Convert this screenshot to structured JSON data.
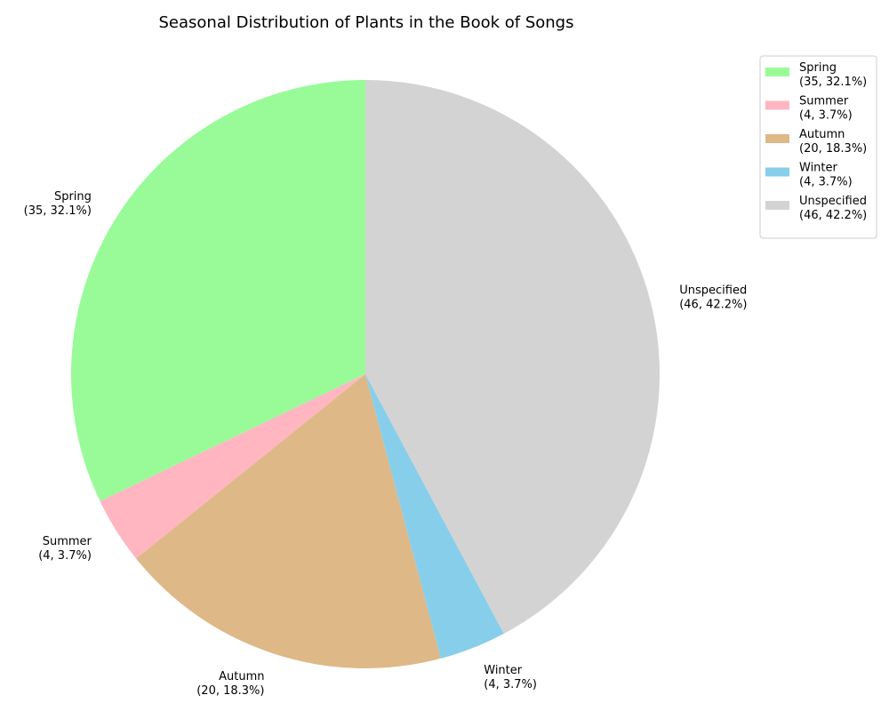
{
  "chart_data": {
    "type": "pie",
    "title": "Seasonal Distribution of Plants in the Book of Songs",
    "start_angle_deg": 90,
    "direction": "counterclockwise",
    "legend_position": "top-right",
    "slices": [
      {
        "name": "Spring",
        "value": 35,
        "percent": "32.1%",
        "color": "#98FB98",
        "label_line1": "Spring",
        "label_line2": "(35, 32.1%)"
      },
      {
        "name": "Summer",
        "value": 4,
        "percent": "3.7%",
        "color": "#FFB6C1",
        "label_line1": "Summer",
        "label_line2": "(4, 3.7%)"
      },
      {
        "name": "Autumn",
        "value": 20,
        "percent": "18.3%",
        "color": "#DEB887",
        "label_line1": "Autumn",
        "label_line2": "(20, 18.3%)"
      },
      {
        "name": "Winter",
        "value": 4,
        "percent": "3.7%",
        "color": "#87CEEB",
        "label_line1": "Winter",
        "label_line2": "(4, 3.7%)"
      },
      {
        "name": "Unspecified",
        "value": 46,
        "percent": "42.2%",
        "color": "#D3D3D3",
        "label_line1": "Unspecified",
        "label_line2": "(46, 42.2%)"
      }
    ]
  }
}
